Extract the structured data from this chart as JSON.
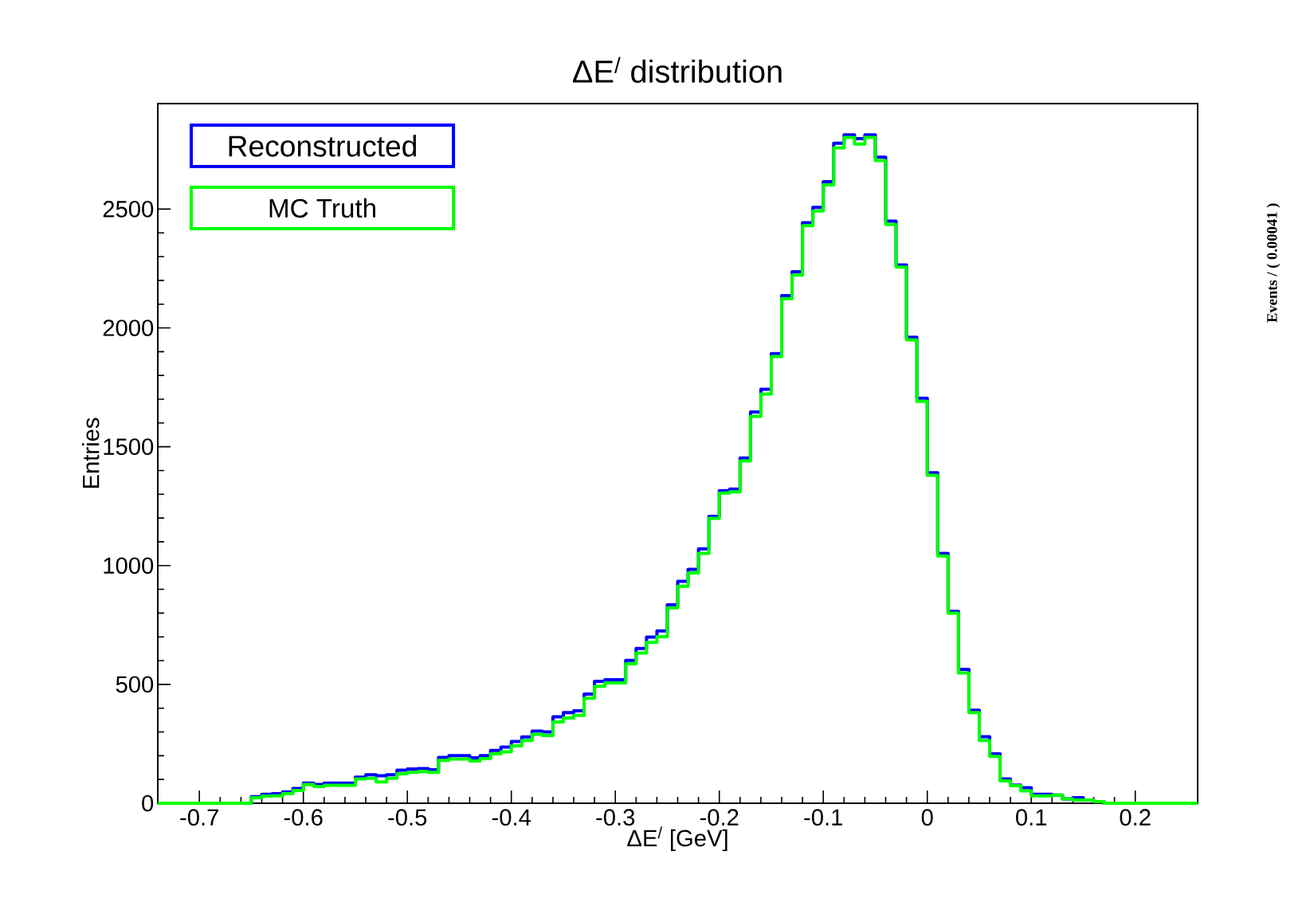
{
  "chart_data": {
    "type": "histogram",
    "title": "ΔE$^{/}$ distribution",
    "xlabel": "ΔE$^{/}$ [GeV]",
    "ylabel": "Entries",
    "bins": [
      -0.74,
      -0.73,
      -0.72,
      -0.71,
      -0.7,
      -0.69,
      -0.68,
      -0.67,
      -0.66,
      -0.65,
      -0.64,
      -0.63,
      -0.62,
      -0.61,
      -0.6,
      -0.59,
      -0.58,
      -0.57,
      -0.56,
      -0.55,
      -0.54,
      -0.53,
      -0.52,
      -0.51,
      -0.5,
      -0.49,
      -0.48,
      -0.47,
      -0.46,
      -0.45,
      -0.44,
      -0.43,
      -0.42,
      -0.41,
      -0.4,
      -0.39,
      -0.38,
      -0.37,
      -0.36,
      -0.35,
      -0.34,
      -0.33,
      -0.32,
      -0.31,
      -0.3,
      -0.29,
      -0.28,
      -0.27,
      -0.26,
      -0.25,
      -0.24,
      -0.23,
      -0.22,
      -0.21,
      -0.2,
      -0.19,
      -0.18,
      -0.17,
      -0.16,
      -0.15,
      -0.14,
      -0.13,
      -0.12,
      -0.11,
      -0.1,
      -0.09,
      -0.08,
      -0.07,
      -0.06,
      -0.05,
      -0.04,
      -0.03,
      -0.02,
      -0.01,
      0.0,
      0.01,
      0.02,
      0.03,
      0.04,
      0.05,
      0.06,
      0.07,
      0.08,
      0.09,
      0.1,
      0.11,
      0.12,
      0.13,
      0.14,
      0.15,
      0.16,
      0.17,
      0.18,
      0.19,
      0.2,
      0.21,
      0.22,
      0.23,
      0.24,
      0.25,
      0.26
    ],
    "series": [
      {
        "name": "Reconstructed",
        "color": "#0000ff",
        "values": [
          0,
          0,
          0,
          0,
          0,
          0,
          0,
          0,
          0,
          28,
          38,
          40,
          48,
          62,
          85,
          79,
          85,
          85,
          85,
          110,
          120,
          116,
          120,
          139,
          144,
          146,
          141,
          193,
          200,
          200,
          191,
          200,
          222,
          236,
          260,
          279,
          303,
          300,
          364,
          381,
          389,
          459,
          513,
          520,
          520,
          601,
          651,
          699,
          725,
          835,
          934,
          984,
          1070,
          1207,
          1315,
          1322,
          1453,
          1646,
          1742,
          1892,
          2136,
          2236,
          2443,
          2507,
          2615,
          2777,
          2812,
          2796,
          2812,
          2718,
          2449,
          2265,
          1961,
          1704,
          1391,
          1051,
          807,
          563,
          391,
          280,
          208,
          102,
          76,
          65,
          38,
          38,
          34,
          18,
          23,
          13,
          7,
          0,
          0,
          0,
          0,
          0,
          0,
          0,
          0,
          0
        ]
      },
      {
        "name": "MC Truth",
        "color": "#00ff00",
        "values": [
          0,
          0,
          0,
          0,
          0,
          0,
          0,
          0,
          0,
          23,
          30,
          31,
          40,
          54,
          79,
          70,
          75,
          75,
          75,
          102,
          105,
          90,
          105,
          124,
          130,
          133,
          130,
          180,
          186,
          186,
          178,
          188,
          208,
          216,
          241,
          264,
          290,
          285,
          342,
          359,
          370,
          442,
          492,
          506,
          506,
          587,
          632,
          677,
          701,
          822,
          913,
          969,
          1051,
          1199,
          1305,
          1310,
          1440,
          1628,
          1722,
          1879,
          2123,
          2222,
          2430,
          2492,
          2602,
          2758,
          2801,
          2774,
          2801,
          2704,
          2435,
          2256,
          1950,
          1691,
          1380,
          1040,
          800,
          548,
          381,
          264,
          197,
          94,
          74,
          52,
          31,
          31,
          34,
          18,
          13,
          13,
          7,
          0,
          0,
          0,
          0,
          0,
          0,
          0,
          0,
          0
        ]
      }
    ],
    "xlim": [
      -0.74,
      0.26
    ],
    "ylim": [
      0,
      2944
    ],
    "xticks": [
      -0.7,
      -0.6,
      -0.5,
      -0.4,
      -0.3,
      -0.2,
      -0.1,
      0,
      0.1,
      0.2
    ],
    "yticks": [
      0,
      500,
      1000,
      1500,
      2000,
      2500
    ],
    "legend": "top left",
    "annotations": [
      "Events / ( 0.00041 )"
    ]
  }
}
